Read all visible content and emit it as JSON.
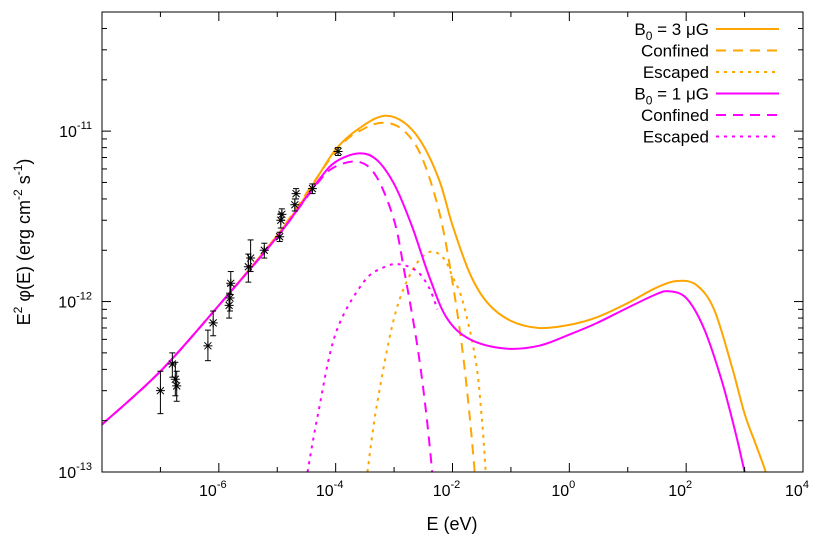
{
  "chart_data": {
    "type": "line",
    "title": "",
    "xlabel": "E (eV)",
    "ylabel_parts": {
      "main": "E",
      "exp2": "2",
      "phi": " φ(E) (erg cm",
      "expm2": "-2",
      "s": " s",
      "expm1": "-1",
      "close": ")"
    },
    "xscale": "log",
    "yscale": "log",
    "xlim": [
      1e-08,
      10000.0
    ],
    "ylim": [
      1e-13,
      5e-11
    ],
    "x_ticks": [
      {
        "value": 1e-06,
        "base": "10",
        "exp": "-6"
      },
      {
        "value": 0.0001,
        "base": "10",
        "exp": "-4"
      },
      {
        "value": 0.01,
        "base": "10",
        "exp": "-2"
      },
      {
        "value": 1,
        "base": "10",
        "exp": "0"
      },
      {
        "value": 100.0,
        "base": "10",
        "exp": "2"
      },
      {
        "value": 10000.0,
        "base": "10",
        "exp": "4"
      }
    ],
    "y_ticks": [
      {
        "value": 1e-13,
        "base": "10",
        "exp": "-13"
      },
      {
        "value": 1e-12,
        "base": "10",
        "exp": "-12"
      },
      {
        "value": 1e-11,
        "base": "10",
        "exp": "-11"
      }
    ],
    "grid": false,
    "legend_placement": "top-right",
    "colors": {
      "b3": "#ffa500",
      "b1": "#ff00ff",
      "data": "#000000"
    },
    "series": [
      {
        "label": "B",
        "sub": "0",
        "suffix": " = 3 μG",
        "color": "#ffa500",
        "dash": "solid",
        "points": [
          [
            1e-08,
            1.9e-13
          ],
          [
            1e-07,
            3.9e-13
          ],
          [
            1e-06,
            9.5e-13
          ],
          [
            1e-05,
            2.45e-12
          ],
          [
            3e-05,
            4.1e-12
          ],
          [
            0.0001,
            7.8e-12
          ],
          [
            0.0003,
            1.08e-11
          ],
          [
            0.0007,
            1.23e-11
          ],
          [
            0.0015,
            1.12e-11
          ],
          [
            0.003,
            8.5e-12
          ],
          [
            0.006,
            5.1e-12
          ],
          [
            0.01,
            2.8e-12
          ],
          [
            0.02,
            1.45e-12
          ],
          [
            0.04,
            9.8e-13
          ],
          [
            0.1,
            7.7e-13
          ],
          [
            0.3,
            7e-13
          ],
          [
            1,
            7.3e-13
          ],
          [
            3,
            8.1e-13
          ],
          [
            10,
            9.8e-13
          ],
          [
            30,
            1.2e-12
          ],
          [
            70,
            1.32e-12
          ],
          [
            150,
            1.25e-12
          ],
          [
            300,
            9e-13
          ],
          [
            600,
            4.2e-13
          ],
          [
            1000,
            2.2e-13
          ],
          [
            1500,
            1.5e-13
          ],
          [
            2000,
            1.15e-13
          ],
          [
            2300,
            1e-13
          ]
        ]
      },
      {
        "label": "Confined",
        "color": "#ffa500",
        "dash": "dashed",
        "points": [
          [
            1e-08,
            1.9e-13
          ],
          [
            1e-07,
            3.9e-13
          ],
          [
            1e-06,
            9.5e-13
          ],
          [
            1e-05,
            2.45e-12
          ],
          [
            0.0001,
            7.6e-12
          ],
          [
            0.0003,
            1.03e-11
          ],
          [
            0.0007,
            1.12e-11
          ],
          [
            0.0015,
            1e-11
          ],
          [
            0.003,
            7e-12
          ],
          [
            0.006,
            3.3e-12
          ],
          [
            0.01,
            1.3e-12
          ],
          [
            0.015,
            5e-13
          ],
          [
            0.02,
            2e-13
          ],
          [
            0.024,
            1e-13
          ]
        ]
      },
      {
        "label": "Escaped",
        "color": "#ffa500",
        "dash": "dotted",
        "points": [
          [
            0.00035,
            1e-13
          ],
          [
            0.0005,
            2.4e-13
          ],
          [
            0.001,
            8e-13
          ],
          [
            0.002,
            1.5e-12
          ],
          [
            0.004,
            1.95e-12
          ],
          [
            0.007,
            1.8e-12
          ],
          [
            0.01,
            1.4e-12
          ],
          [
            0.015,
            1e-12
          ],
          [
            0.025,
            4.5e-13
          ],
          [
            0.032,
            2e-13
          ],
          [
            0.037,
            1e-13
          ]
        ]
      },
      {
        "label": "B",
        "sub": "0",
        "suffix": " = 1 μG",
        "color": "#ff00ff",
        "dash": "solid",
        "points": [
          [
            1e-08,
            1.9e-13
          ],
          [
            1e-07,
            3.9e-13
          ],
          [
            1e-06,
            9.5e-13
          ],
          [
            1e-05,
            2.4e-12
          ],
          [
            5e-05,
            5.1e-12
          ],
          [
            0.0001,
            6.6e-12
          ],
          [
            0.00025,
            7.4e-12
          ],
          [
            0.0005,
            6.8e-12
          ],
          [
            0.001,
            4.9e-12
          ],
          [
            0.002,
            2.8e-12
          ],
          [
            0.004,
            1.4e-12
          ],
          [
            0.008,
            8e-13
          ],
          [
            0.02,
            6e-13
          ],
          [
            0.08,
            5.3e-13
          ],
          [
            0.3,
            5.5e-13
          ],
          [
            1,
            6.4e-13
          ],
          [
            3,
            7.5e-13
          ],
          [
            10,
            9.2e-13
          ],
          [
            30,
            1.1e-12
          ],
          [
            50,
            1.15e-12
          ],
          [
            100,
            1.05e-12
          ],
          [
            200,
            7e-13
          ],
          [
            400,
            3.5e-13
          ],
          [
            700,
            1.7e-13
          ],
          [
            1000,
            1e-13
          ]
        ]
      },
      {
        "label": "Confined",
        "color": "#ff00ff",
        "dash": "dashed",
        "points": [
          [
            1e-08,
            1.9e-13
          ],
          [
            1e-07,
            3.9e-13
          ],
          [
            1e-06,
            9.5e-13
          ],
          [
            1e-05,
            2.4e-12
          ],
          [
            5e-05,
            5e-12
          ],
          [
            0.0001,
            6.2e-12
          ],
          [
            0.00025,
            6.6e-12
          ],
          [
            0.0005,
            5.4e-12
          ],
          [
            0.001,
            3e-12
          ],
          [
            0.0015,
            1.5e-12
          ],
          [
            0.0025,
            5.5e-13
          ],
          [
            0.0035,
            2.3e-13
          ],
          [
            0.0045,
            1e-13
          ]
        ]
      },
      {
        "label": "Escaped",
        "color": "#ff00ff",
        "dash": "dotted",
        "points": [
          [
            3.3e-05,
            1e-13
          ],
          [
            5e-05,
            2.2e-13
          ],
          [
            0.0001,
            6.5e-13
          ],
          [
            0.0003,
            1.3e-12
          ],
          [
            0.0007,
            1.6e-12
          ],
          [
            0.0013,
            1.65e-12
          ],
          [
            0.0025,
            1.5e-12
          ],
          [
            0.004,
            1.2e-12
          ],
          [
            0.0055,
            9e-13
          ]
        ]
      }
    ],
    "observations": {
      "label": "",
      "points": [
        {
          "x": 1e-07,
          "y": 3e-13,
          "lo": 2.2e-13,
          "hi": 3.9e-13
        },
        {
          "x": 1.6e-07,
          "y": 4.3e-13,
          "lo": 3.6e-13,
          "hi": 5e-13
        },
        {
          "x": 1.8e-07,
          "y": 3.5e-13,
          "lo": 2.8e-13,
          "hi": 4.4e-13
        },
        {
          "x": 1.9e-07,
          "y": 3.2e-13,
          "lo": 2.6e-13,
          "hi": 3.9e-13
        },
        {
          "x": 6.5e-07,
          "y": 5.5e-13,
          "lo": 4.5e-13,
          "hi": 6.8e-13
        },
        {
          "x": 8e-07,
          "y": 7.5e-13,
          "lo": 6.3e-13,
          "hi": 8.8e-13
        },
        {
          "x": 1.5e-06,
          "y": 9.5e-13,
          "lo": 8e-13,
          "hi": 1.12e-12
        },
        {
          "x": 1.55e-06,
          "y": 1.05e-12,
          "lo": 8.8e-13,
          "hi": 1.25e-12
        },
        {
          "x": 1.6e-06,
          "y": 1.28e-12,
          "lo": 1.1e-12,
          "hi": 1.5e-12
        },
        {
          "x": 3.2e-06,
          "y": 1.6e-12,
          "lo": 1.3e-12,
          "hi": 1.9e-12
        },
        {
          "x": 3.5e-06,
          "y": 1.8e-12,
          "lo": 1.5e-12,
          "hi": 2.3e-12
        },
        {
          "x": 6e-06,
          "y": 2e-12,
          "lo": 1.8e-12,
          "hi": 2.2e-12
        },
        {
          "x": 1.1e-05,
          "y": 2.4e-12,
          "lo": 2.25e-12,
          "hi": 2.55e-12
        },
        {
          "x": 1.15e-05,
          "y": 3e-12,
          "lo": 2.7e-12,
          "hi": 3.3e-12
        },
        {
          "x": 1.2e-05,
          "y": 3.25e-12,
          "lo": 3e-12,
          "hi": 3.5e-12
        },
        {
          "x": 2e-05,
          "y": 3.7e-12,
          "lo": 3.4e-12,
          "hi": 4e-12
        },
        {
          "x": 2.1e-05,
          "y": 4.3e-12,
          "lo": 4e-12,
          "hi": 4.6e-12
        },
        {
          "x": 4e-05,
          "y": 4.6e-12,
          "lo": 4.3e-12,
          "hi": 4.9e-12
        },
        {
          "x": 0.00011,
          "y": 7.6e-12,
          "lo": 7.2e-12,
          "hi": 8e-12
        }
      ]
    }
  }
}
